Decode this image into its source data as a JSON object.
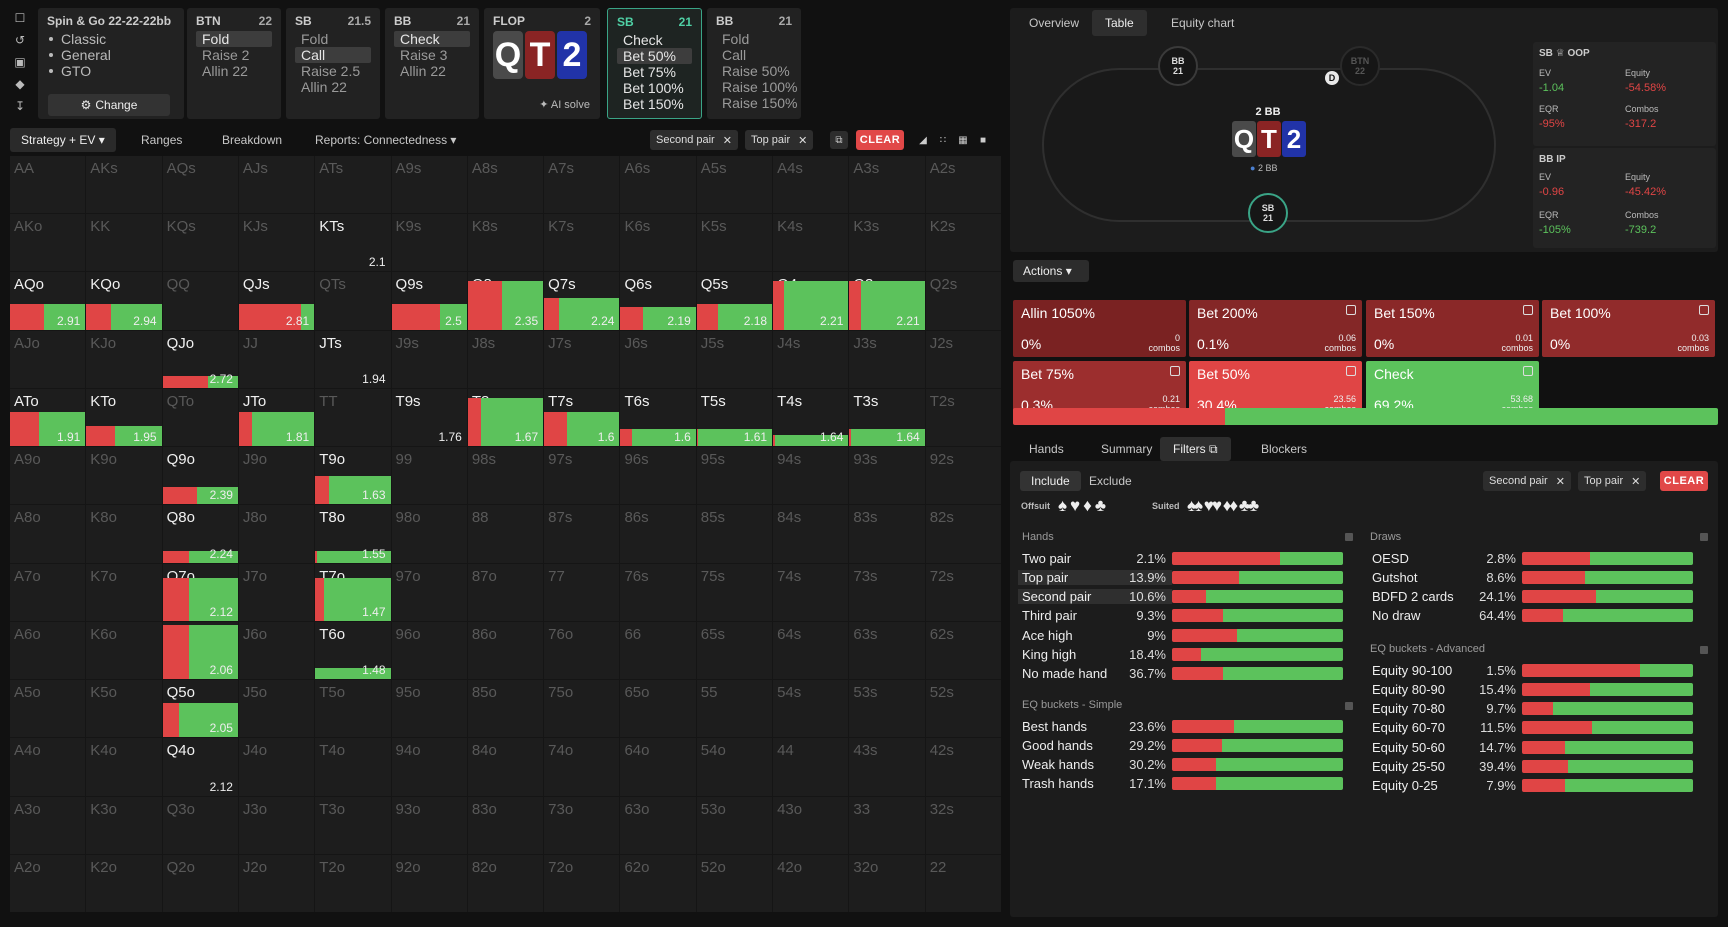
{
  "rail_icons": [
    "bookmark-icon",
    "history-icon",
    "save-icon",
    "gamepad-icon",
    "text-cursor-icon"
  ],
  "nodes": {
    "game": {
      "title": "Spin & Go",
      "stacks": "22-22-22bb",
      "items": [
        "Classic",
        "General",
        "GTO"
      ],
      "change": "Change"
    },
    "btn": {
      "pos": "BTN",
      "stack": "22",
      "actions": [
        "Fold",
        "Raise 2",
        "Allin 22"
      ]
    },
    "sb": {
      "pos": "SB",
      "stack": "21.5",
      "actions": [
        "Fold",
        "Call",
        "Raise 2.5",
        "Allin 22"
      ]
    },
    "bb": {
      "pos": "BB",
      "stack": "21",
      "actions": [
        "Check",
        "Raise 3",
        "Allin 22"
      ]
    },
    "flop": {
      "label": "FLOP",
      "count": "2",
      "cards": [
        "Q",
        "T",
        "2"
      ],
      "ai": "AI solve"
    },
    "sb2": {
      "pos": "SB",
      "stack": "21",
      "actions": [
        "Check",
        "Bet 50%",
        "Bet 75%",
        "Bet 100%",
        "Bet 150%"
      ]
    },
    "bb2": {
      "pos": "BB",
      "stack": "21",
      "actions": [
        "Fold",
        "Call",
        "Raise 50%",
        "Raise 100%",
        "Raise 150%"
      ]
    }
  },
  "ltabs": {
    "strategy": "Strategy + EV",
    "ranges": "Ranges",
    "breakdown": "Breakdown",
    "reports": "Reports: Connectedness",
    "chip1": "Second pair",
    "chip2": "Top pair",
    "clear": "CLEAR"
  },
  "colors": {
    "red": "#e04545",
    "green": "#5cc25c",
    "dark_red": "#7f2424",
    "bg": "#1d1d1d"
  },
  "grid": [
    [
      "AA",
      "AKs",
      "AQs",
      "AJs",
      "ATs",
      "A9s",
      "A8s",
      "A7s",
      "A6s",
      "A5s",
      "A4s",
      "A3s",
      "A2s"
    ],
    [
      "AKo",
      "KK",
      "KQs",
      "KJs",
      "KTs",
      "K9s",
      "K8s",
      "K7s",
      "K6s",
      "K5s",
      "K4s",
      "K3s",
      "K2s"
    ],
    [
      "AQo",
      "KQo",
      "QQ",
      "QJs",
      "QTs",
      "Q9s",
      "Q8s",
      "Q7s",
      "Q6s",
      "Q5s",
      "Q4s",
      "Q3s",
      "Q2s"
    ],
    [
      "AJo",
      "KJo",
      "QJo",
      "JJ",
      "JTs",
      "J9s",
      "J8s",
      "J7s",
      "J6s",
      "J5s",
      "J4s",
      "J3s",
      "J2s"
    ],
    [
      "ATo",
      "KTo",
      "QTo",
      "JTo",
      "TT",
      "T9s",
      "T8s",
      "T7s",
      "T6s",
      "T5s",
      "T4s",
      "T3s",
      "T2s"
    ],
    [
      "A9o",
      "K9o",
      "Q9o",
      "J9o",
      "T9o",
      "99",
      "98s",
      "97s",
      "96s",
      "95s",
      "94s",
      "93s",
      "92s"
    ],
    [
      "A8o",
      "K8o",
      "Q8o",
      "J8o",
      "T8o",
      "98o",
      "88",
      "87s",
      "86s",
      "85s",
      "84s",
      "83s",
      "82s"
    ],
    [
      "A7o",
      "K7o",
      "Q7o",
      "J7o",
      "T7o",
      "97o",
      "87o",
      "77",
      "76s",
      "75s",
      "74s",
      "73s",
      "72s"
    ],
    [
      "A6o",
      "K6o",
      "Q6o",
      "J6o",
      "T6o",
      "96o",
      "86o",
      "76o",
      "66",
      "65s",
      "64s",
      "63s",
      "62s"
    ],
    [
      "A5o",
      "K5o",
      "Q5o",
      "J5o",
      "T5o",
      "95o",
      "85o",
      "75o",
      "65o",
      "55",
      "54s",
      "53s",
      "52s"
    ],
    [
      "A4o",
      "K4o",
      "Q4o",
      "J4o",
      "T4o",
      "94o",
      "84o",
      "74o",
      "64o",
      "54o",
      "44",
      "43s",
      "42s"
    ],
    [
      "A3o",
      "K3o",
      "Q3o",
      "J3o",
      "T3o",
      "93o",
      "83o",
      "73o",
      "63o",
      "53o",
      "43o",
      "33",
      "32s"
    ],
    [
      "A2o",
      "K2o",
      "Q2o",
      "J2o",
      "T2o",
      "92o",
      "82o",
      "72o",
      "62o",
      "52o",
      "42o",
      "32o",
      "22"
    ]
  ],
  "cells": {
    "KTs": {
      "ev": "2.1",
      "freq": 0,
      "bet": 0
    },
    "AQo": {
      "ev": "2.91",
      "freq": 0.45,
      "bet": 0.45
    },
    "KQo": {
      "ev": "2.94",
      "freq": 0.45,
      "bet": 0.33
    },
    "QJs": {
      "ev": "2.81",
      "freq": 0.45,
      "bet": 0.82
    },
    "Q9s": {
      "ev": "2.5",
      "freq": 0.45,
      "bet": 0.65
    },
    "Q8s": {
      "ev": "2.35",
      "freq": 0.85,
      "bet": 0.45
    },
    "Q7s": {
      "ev": "2.24",
      "freq": 0.55,
      "bet": 0.2
    },
    "Q6s": {
      "ev": "2.19",
      "freq": 0.4,
      "bet": 0.3
    },
    "Q5s": {
      "ev": "2.18",
      "freq": 0.45,
      "bet": 0.28
    },
    "Q4s": {
      "ev": "2.21",
      "freq": 0.85,
      "bet": 0.15
    },
    "Q3s": {
      "ev": "2.21",
      "freq": 0.85,
      "bet": 0.15
    },
    "QJo": {
      "ev": "2.72",
      "freq": 0.2,
      "bet": 0.6
    },
    "JTs": {
      "ev": "1.94",
      "freq": 0,
      "bet": 0
    },
    "ATo": {
      "ev": "1.91",
      "freq": 0.6,
      "bet": 0.38
    },
    "KTo": {
      "ev": "1.95",
      "freq": 0.35,
      "bet": 0.38
    },
    "JTo": {
      "ev": "1.81",
      "freq": 0.6,
      "bet": 0.18
    },
    "T9s": {
      "ev": "1.76",
      "freq": 0,
      "bet": 0
    },
    "T8s": {
      "ev": "1.67",
      "freq": 0.85,
      "bet": 0.18
    },
    "T7s": {
      "ev": "1.6",
      "freq": 0.6,
      "bet": 0.3
    },
    "T6s": {
      "ev": "1.6",
      "freq": 0.3,
      "bet": 0.15
    },
    "T5s": {
      "ev": "1.61",
      "freq": 0.3,
      "bet": 0.02
    },
    "T4s": {
      "ev": "1.64",
      "freq": 0.2,
      "bet": 0.02
    },
    "T3s": {
      "ev": "1.64",
      "freq": 0.3,
      "bet": 0.02
    },
    "Q9o": {
      "ev": "2.39",
      "freq": 0.3,
      "bet": 0.45
    },
    "T9o": {
      "ev": "1.63",
      "freq": 0.5,
      "bet": 0.18
    },
    "Q8o": {
      "ev": "2.24",
      "freq": 0.2,
      "bet": 0.35
    },
    "T8o": {
      "ev": "1.55",
      "freq": 0.2,
      "bet": 0.02
    },
    "Q7o": {
      "ev": "2.12",
      "freq": 0.75,
      "bet": 0.35
    },
    "T7o": {
      "ev": "1.47",
      "freq": 0.75,
      "bet": 0.12
    },
    "Q6o": {
      "ev": "2.06",
      "freq": 0.95,
      "bet": 0.35
    },
    "T6o": {
      "ev": "1.48",
      "freq": 0.2,
      "bet": 0
    },
    "Q5o": {
      "ev": "2.05",
      "freq": 0.6,
      "bet": 0.22
    },
    "Q4o": {
      "ev": "2.12",
      "freq": 0,
      "bet": 0
    }
  },
  "right_tabs": {
    "overview": "Overview",
    "table": "Table",
    "equity": "Equity chart"
  },
  "table": {
    "bb_label": "BB",
    "bb_stack": "21",
    "btn_label": "BTN",
    "btn_stack": "22",
    "sb_label": "SB",
    "sb_stack": "21",
    "pot": "2 BB",
    "pot_sub": "2 BB",
    "dealer": "D",
    "cards": [
      "Q",
      "T",
      "2"
    ]
  },
  "stats": {
    "sb": {
      "head": "SB",
      "tag": "OOP",
      "ev_l": "EV",
      "ev": "-1.04",
      "eq_l": "Equity",
      "eq": "-54.58%",
      "eqr_l": "EQR",
      "eqr": "-95%",
      "combos_l": "Combos",
      "combos": "-317.2"
    },
    "bb": {
      "head": "BB",
      "tag": "IP",
      "ev_l": "EV",
      "ev": "-0.96",
      "eq_l": "Equity",
      "eq": "-45.42%",
      "eqr_l": "EQR",
      "eqr": "-105%",
      "combos_l": "Combos",
      "combos": "-739.2"
    }
  },
  "actions_label": "Actions",
  "action_boxes": [
    {
      "name": "Allin 1050%",
      "pct": "0%",
      "combos": "0",
      "combos_l": "combos",
      "color": "#7a2222"
    },
    {
      "name": "Bet 200%",
      "pct": "0.1%",
      "combos": "0.06",
      "combos_l": "combos",
      "color": "#842727"
    },
    {
      "name": "Bet 150%",
      "pct": "0%",
      "combos": "0.01",
      "combos_l": "combos",
      "color": "#8a2828"
    },
    {
      "name": "Bet 100%",
      "pct": "0%",
      "combos": "0.03",
      "combos_l": "combos",
      "color": "#912b2b"
    },
    {
      "name": "Bet 75%",
      "pct": "0.3%",
      "combos": "0.21",
      "combos_l": "combos",
      "color": "#9c2e2e"
    },
    {
      "name": "Bet 50%",
      "pct": "30.4%",
      "combos": "23.56",
      "combos_l": "combos",
      "color": "#e04545"
    },
    {
      "name": "Check",
      "pct": "69.2%",
      "combos": "53.68",
      "combos_l": "combos",
      "color": "#5cc25c"
    }
  ],
  "agg": {
    "bet": 0.3,
    "check": 0.7
  },
  "bottom_tabs": {
    "hands": "Hands",
    "summary": "Summary",
    "filters": "Filters",
    "blockers": "Blockers"
  },
  "filters": {
    "include": "Include",
    "exclude": "Exclude",
    "offsuit": "Offsuit",
    "suited": "Suited",
    "chip1": "Second pair",
    "chip2": "Top pair",
    "clear": "CLEAR"
  },
  "hands_title": "Hands",
  "hands": [
    {
      "n": "Two pair",
      "p": "2.1%",
      "r": 0.63
    },
    {
      "n": "Top pair",
      "p": "13.9%",
      "r": 0.39
    },
    {
      "n": "Second pair",
      "p": "10.6%",
      "r": 0.2
    },
    {
      "n": "Third pair",
      "p": "9.3%",
      "r": 0.3
    },
    {
      "n": "Ace high",
      "p": "9%",
      "r": 0.38
    },
    {
      "n": "King high",
      "p": "18.4%",
      "r": 0.17
    },
    {
      "n": "No made hand",
      "p": "36.7%",
      "r": 0.3
    }
  ],
  "eqs_title": "EQ buckets - Simple",
  "eqs": [
    {
      "n": "Best hands",
      "p": "23.6%",
      "r": 0.36
    },
    {
      "n": "Good hands",
      "p": "29.2%",
      "r": 0.29
    },
    {
      "n": "Weak hands",
      "p": "30.2%",
      "r": 0.26
    },
    {
      "n": "Trash hands",
      "p": "17.1%",
      "r": 0.26
    }
  ],
  "draws_title": "Draws",
  "draws": [
    {
      "n": "OESD",
      "p": "2.8%",
      "r": 0.4
    },
    {
      "n": "Gutshot",
      "p": "8.6%",
      "r": 0.37
    },
    {
      "n": "BDFD 2 cards",
      "p": "24.1%",
      "r": 0.43
    },
    {
      "n": "No draw",
      "p": "64.4%",
      "r": 0.24
    }
  ],
  "eqa_title": "EQ buckets - Advanced",
  "eqa": [
    {
      "n": "Equity 90-100",
      "p": "1.5%",
      "r": 0.69
    },
    {
      "n": "Equity 80-90",
      "p": "15.4%",
      "r": 0.4
    },
    {
      "n": "Equity 70-80",
      "p": "9.7%",
      "r": 0.18
    },
    {
      "n": "Equity 60-70",
      "p": "11.5%",
      "r": 0.41
    },
    {
      "n": "Equity 50-60",
      "p": "14.7%",
      "r": 0.25
    },
    {
      "n": "Equity 25-50",
      "p": "39.4%",
      "r": 0.27
    },
    {
      "n": "Equity 0-25",
      "p": "7.9%",
      "r": 0.25
    }
  ]
}
